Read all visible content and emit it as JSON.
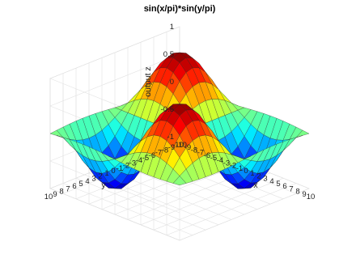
{
  "chart_data": {
    "type": "surface",
    "title": "sin(x/pi)*sin(y/pi)",
    "function": "z = sin(x/pi)*sin(y/pi)",
    "xlabel": "x",
    "ylabel": "y",
    "zlabel": "output z",
    "xlim": [
      -10,
      10
    ],
    "ylim": [
      -10,
      10
    ],
    "zlim": [
      -1,
      1
    ],
    "grid_resolution": 21,
    "x_ticks": [
      "-10",
      "-9",
      "-8",
      "-7",
      "-6",
      "-5",
      "-4",
      "-3",
      "-2",
      "-1",
      "0",
      "1",
      "2",
      "3",
      "4",
      "5",
      "6",
      "7",
      "8",
      "9",
      "10"
    ],
    "y_ticks": [
      "-10",
      "-9",
      "-8",
      "-7",
      "-6",
      "-5",
      "-4",
      "-3",
      "-2",
      "-1",
      "0",
      "1",
      "2",
      "3",
      "4",
      "5",
      "6",
      "7",
      "8",
      "9",
      "10"
    ],
    "z_ticks": [
      "-1",
      "-0.5",
      "0",
      "0.5",
      "1"
    ],
    "grid": true,
    "colormap": "jet"
  }
}
